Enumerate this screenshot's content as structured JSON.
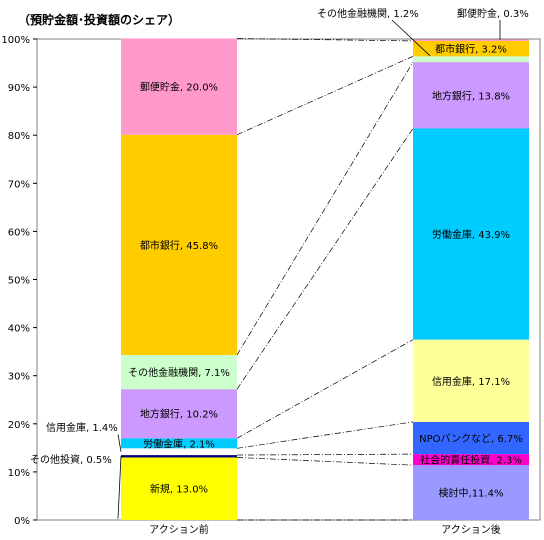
{
  "chart_data": {
    "type": "bar",
    "stacked": true,
    "title": "（預貯金額･投資額のシェア）",
    "categories": [
      "アクション前",
      "アクション後"
    ],
    "y_ticks": [
      "0%",
      "10%",
      "20%",
      "30%",
      "40%",
      "50%",
      "60%",
      "70%",
      "80%",
      "90%",
      "100%"
    ],
    "ylim": [
      0,
      100
    ],
    "grid": false,
    "connector_lines": "dash-dot",
    "bars": [
      {
        "category": "アクション前",
        "segments": [
          {
            "name": "新規",
            "value": 13.0,
            "label": "新規, 13.0%",
            "color": "#ffff00",
            "label_outside": false
          },
          {
            "name": "その他投資",
            "value": 0.5,
            "label": "その他投資, 0.5%",
            "color": "#000080",
            "label_outside": true
          },
          {
            "name": "信用金庫",
            "value": 1.4,
            "label": "信用金庫, 1.4%",
            "color": "#ffffff",
            "label_outside": true
          },
          {
            "name": "労働金庫",
            "value": 2.1,
            "label": "労働金庫, 2.1%",
            "color": "#00ccff",
            "label_outside": false
          },
          {
            "name": "地方銀行",
            "value": 10.2,
            "label": "地方銀行, 10.2%",
            "color": "#cc99ff",
            "label_outside": false
          },
          {
            "name": "その他金融機関",
            "value": 7.1,
            "label": "その他金融機関, 7.1%",
            "color": "#ccffcc",
            "label_outside": false
          },
          {
            "name": "都市銀行",
            "value": 45.8,
            "label": "都市銀行, 45.8%",
            "color": "#ffcc00",
            "label_outside": false
          },
          {
            "name": "郵便貯金",
            "value": 20.0,
            "label": "郵便貯金, 20.0%",
            "color": "#ff99cc",
            "label_outside": false
          }
        ]
      },
      {
        "category": "アクション後",
        "segments": [
          {
            "name": "検討中",
            "value": 11.4,
            "label": "検討中,11.4%",
            "color": "#9999ff",
            "label_outside": false
          },
          {
            "name": "社会的責任投資",
            "value": 2.3,
            "label": "社会的責任投資, 2.3%",
            "color": "#ff00cc",
            "label_outside": false
          },
          {
            "name": "NPOバンクなど",
            "value": 6.7,
            "label": "NPOバンクなど, 6.7%",
            "color": "#3366ff",
            "label_outside": false
          },
          {
            "name": "信用金庫",
            "value": 17.1,
            "label": "信用金庫, 17.1%",
            "color": "#ffff99",
            "label_outside": false
          },
          {
            "name": "労働金庫",
            "value": 43.9,
            "label": "労働金庫, 43.9%",
            "color": "#00ccff",
            "label_outside": false
          },
          {
            "name": "地方銀行",
            "value": 13.8,
            "label": "地方銀行, 13.8%",
            "color": "#cc99ff",
            "label_outside": false
          },
          {
            "name": "その他金融機関",
            "value": 1.2,
            "label": "その他金融機関, 1.2%",
            "color": "#ccffcc",
            "label_outside": true
          },
          {
            "name": "都市銀行",
            "value": 3.2,
            "label": "都市銀行, 3.2%",
            "color": "#ffcc00",
            "label_outside": false
          },
          {
            "name": "郵便貯金",
            "value": 0.3,
            "label": "郵便貯金, 0.3%",
            "color": "#ff99cc",
            "label_outside": true
          }
        ]
      }
    ]
  }
}
